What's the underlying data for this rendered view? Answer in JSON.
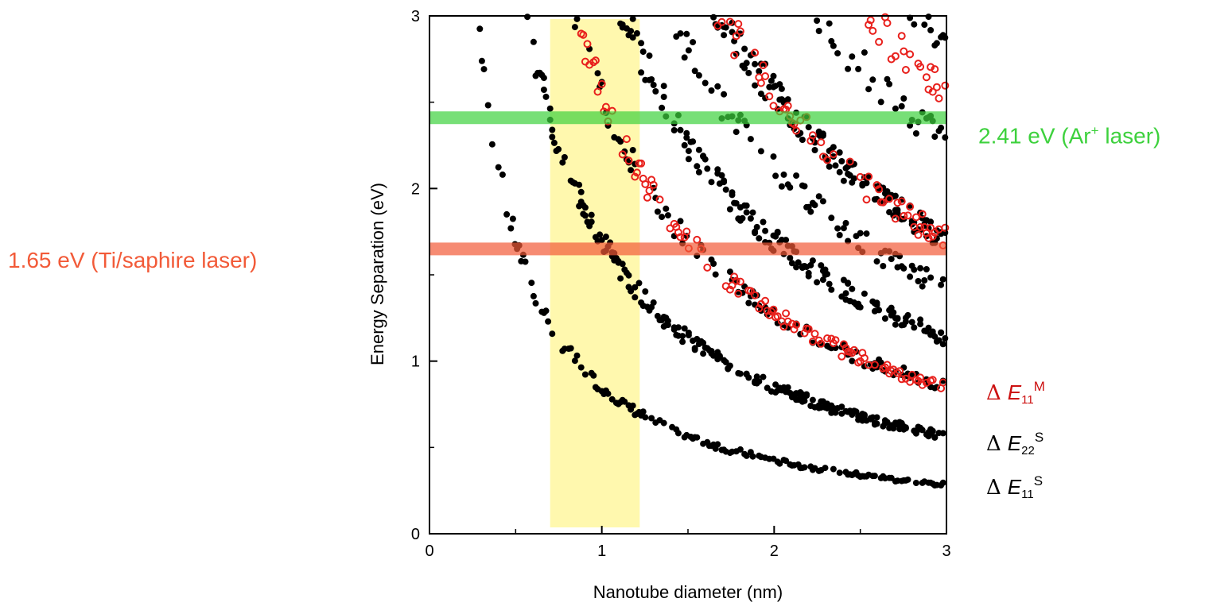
{
  "chart_data": {
    "type": "scatter",
    "xlabel": "Nanotube diameter (nm)",
    "ylabel": "Energy Separation (eV)",
    "xlim": [
      0,
      3
    ],
    "ylim": [
      0,
      3
    ],
    "xticks": [
      "0",
      "1",
      "2",
      "3"
    ],
    "yticks": [
      "0",
      "1",
      "2",
      "3"
    ],
    "grid": false,
    "highlight_band": {
      "x_from": 0.7,
      "x_to": 1.22,
      "color": "#fff7a0"
    },
    "laser_lines": [
      {
        "label": "2.41 eV (Ar",
        "label_sup": "+",
        "label_suffix": " laser)",
        "energy": 2.41,
        "color": "#3dd13d"
      },
      {
        "label": "1.65 eV (Ti/saphire laser)",
        "energy": 1.65,
        "color": "#f25a38"
      }
    ],
    "series": [
      {
        "label": {
          "prefix": "Δ",
          "symbol": "E",
          "sub": "11",
          "sup": "S"
        },
        "color": "#000000",
        "marker": "filled-circle",
        "constant": 0.85
      },
      {
        "label": {
          "prefix": "Δ",
          "symbol": "E",
          "sub": "22",
          "sup": "S"
        },
        "color": "#000000",
        "marker": "filled-circle",
        "constant": 1.7
      },
      {
        "label": {
          "prefix": "Δ",
          "symbol": "E",
          "sub": "11",
          "sup": "M"
        },
        "color": "#e8201c",
        "marker": "open-circle",
        "constant": 2.55
      }
    ]
  }
}
